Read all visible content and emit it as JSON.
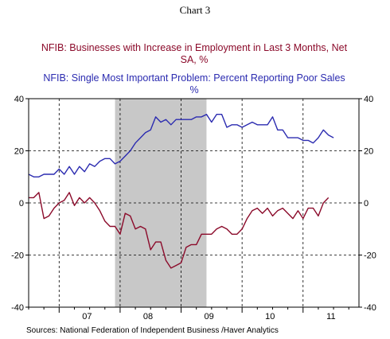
{
  "chart_data": {
    "type": "line",
    "title": "Chart 3",
    "series_titles": {
      "employment_line1": "NFIB: Businesses with Increase in Employment in Last 3 Months, Net",
      "employment_line2": "SA, %",
      "sales_line1": "NFIB: Single Most Important Problem: Percent Reporting Poor Sales",
      "sales_line2": "%"
    },
    "source": "Sources:  National Federation of Independent Business /Haver Analytics",
    "x_start": "2006-07",
    "x_end": "2011-12",
    "x_tick_labels": [
      "07",
      "08",
      "09",
      "10",
      "11"
    ],
    "ylim": [
      -40,
      40
    ],
    "y_ticks": [
      -40,
      -20,
      0,
      20,
      40
    ],
    "grid": "dashed, both axes",
    "recession_shading": {
      "start": "2007-12",
      "end": "2009-06"
    },
    "colors": {
      "employment": "#8b0a2a",
      "poor_sales": "#2b2bb0",
      "shading": "#c8c8c8"
    },
    "series": [
      {
        "key": "employment",
        "name": "NFIB: Businesses with Increase in Employment in Last 3 Months, Net",
        "start": "2006-07",
        "values": [
          2,
          2,
          4,
          -6,
          -5,
          -2,
          0,
          1,
          4,
          -1,
          2,
          0,
          2,
          0,
          -3,
          -7,
          -9,
          -9,
          -12,
          -4,
          -5,
          -10,
          -9,
          -10,
          -18,
          -15,
          -15,
          -22,
          -25,
          -24,
          -23,
          -17,
          -16,
          -16,
          -12,
          -12,
          -12,
          -10,
          -9,
          -10,
          -12,
          -12,
          -10,
          -6,
          -3,
          -2,
          -4,
          -2,
          -5,
          -3,
          -2,
          -4,
          -6,
          -3,
          -6,
          -2,
          -2,
          -5,
          0,
          2
        ]
      },
      {
        "key": "poor_sales",
        "name": "NFIB: Single Most Important Problem: Percent Reporting Poor Sales",
        "start": "2006-07",
        "values": [
          11,
          10,
          10,
          11,
          11,
          11,
          13,
          11,
          14,
          11,
          14,
          12,
          15,
          14,
          16,
          17,
          17,
          15,
          16,
          18,
          20,
          23,
          25,
          27,
          28,
          33,
          31,
          32,
          30,
          32,
          32,
          32,
          32,
          33,
          33,
          34,
          31,
          34,
          34,
          29,
          30,
          30,
          29,
          30,
          31,
          30,
          30,
          30,
          33,
          28,
          28,
          25,
          25,
          25,
          24,
          24,
          23,
          25,
          28,
          26,
          25
        ]
      }
    ]
  }
}
